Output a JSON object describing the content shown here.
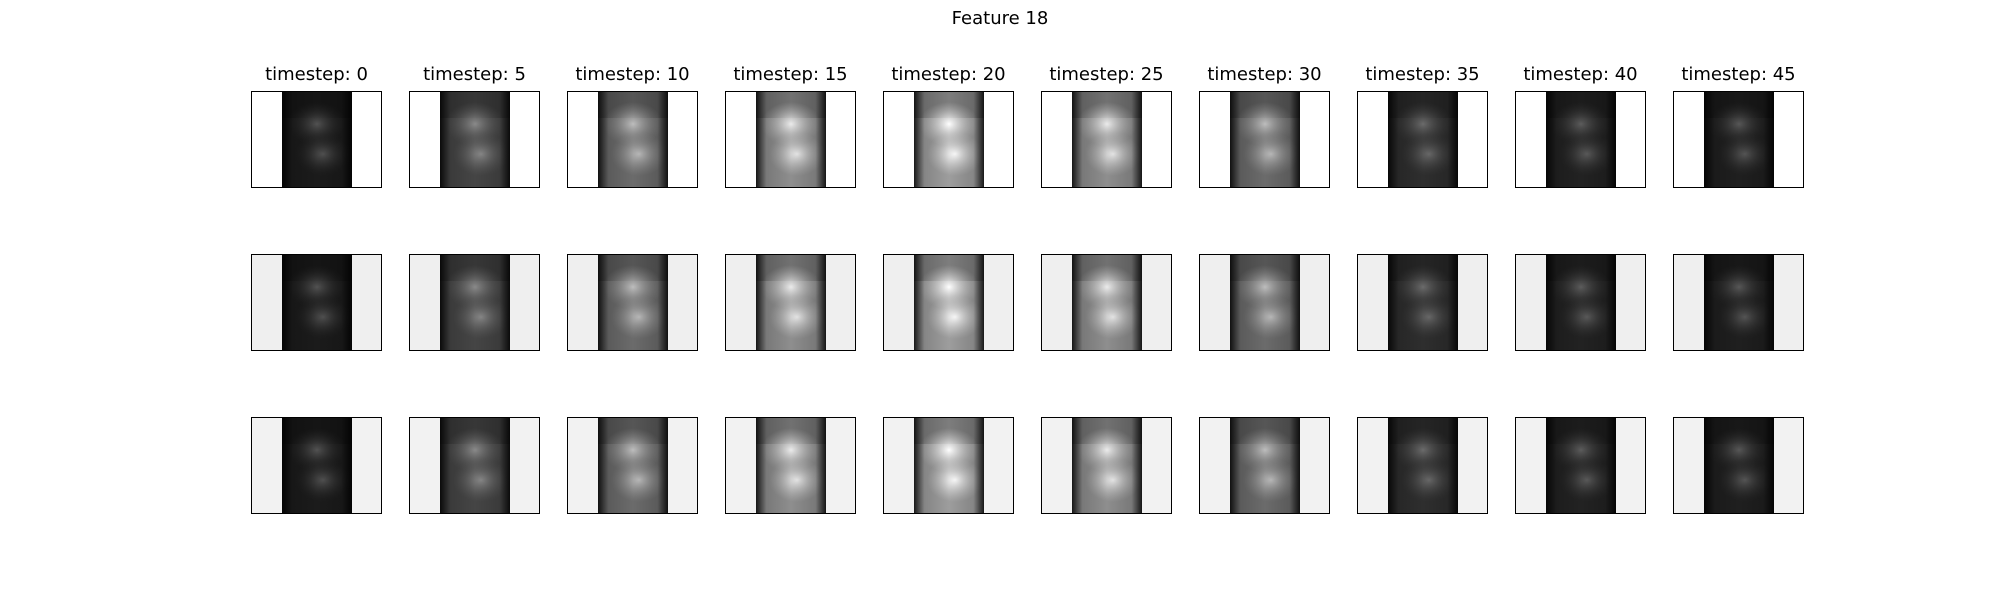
{
  "figure": {
    "title": "Feature 18",
    "columns": [
      {
        "label": "timestep: 0",
        "brightness": 0.14
      },
      {
        "label": "timestep: 5",
        "brightness": 0.36
      },
      {
        "label": "timestep: 10",
        "brightness": 0.56
      },
      {
        "label": "timestep: 15",
        "brightness": 0.74
      },
      {
        "label": "timestep: 20",
        "brightness": 0.82
      },
      {
        "label": "timestep: 25",
        "brightness": 0.74
      },
      {
        "label": "timestep: 30",
        "brightness": 0.56
      },
      {
        "label": "timestep: 35",
        "brightness": 0.24
      },
      {
        "label": "timestep: 40",
        "brightness": 0.18
      },
      {
        "label": "timestep: 45",
        "brightness": 0.16
      }
    ],
    "rows": [
      {
        "side_color": "#ffffff"
      },
      {
        "side_color": "#efefef"
      },
      {
        "side_color": "#f2f2f2"
      }
    ]
  }
}
